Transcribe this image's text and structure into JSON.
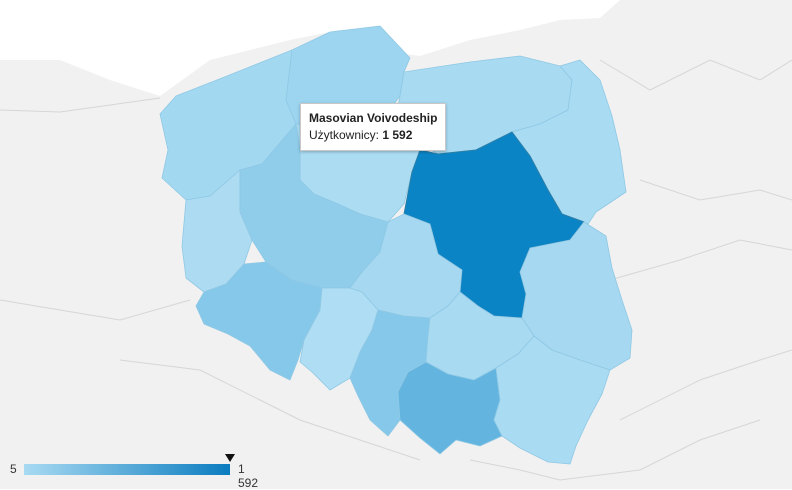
{
  "map": {
    "country": "Poland",
    "metric_label": "Użytkownicy",
    "colors": {
      "min": "#a8daf2",
      "max": "#0b7cbf",
      "background_land": "#f1f1f1",
      "water": "#ffffff",
      "borders": "#cfcfcf"
    },
    "regions": [
      {
        "id": "masovian",
        "value": 1592,
        "fill": "#0b84c6"
      },
      {
        "id": "lesser-poland",
        "fill": "#63b5e0"
      },
      {
        "id": "silesian",
        "fill": "#86c8ea"
      },
      {
        "id": "lower-silesian",
        "fill": "#86c8ea"
      },
      {
        "id": "greater-poland",
        "fill": "#8fcdeb"
      },
      {
        "id": "pomeranian",
        "fill": "#9dd5f0"
      },
      {
        "id": "west-pomeranian",
        "fill": "#a3d8f1"
      },
      {
        "id": "lodz",
        "fill": "#a6d9f1"
      },
      {
        "id": "lublin",
        "fill": "#a6d9f1"
      },
      {
        "id": "warmian-masurian",
        "fill": "#a8daf2"
      },
      {
        "id": "podlaskie",
        "fill": "#a9dbf2"
      },
      {
        "id": "kuyavian-pomeranian",
        "fill": "#abdcf2"
      },
      {
        "id": "lubusz",
        "fill": "#addcf2"
      },
      {
        "id": "holy-cross",
        "fill": "#a8daf2"
      },
      {
        "id": "subcarpathian",
        "fill": "#a9dbf2"
      },
      {
        "id": "opole",
        "fill": "#afddf3"
      }
    ]
  },
  "tooltip": {
    "title": "Masovian Voivodeship",
    "metric_label": "Użytkownicy:",
    "value": "1 592"
  },
  "legend": {
    "min_label": "5",
    "max_label": "1 592",
    "marker_value": 1592
  }
}
